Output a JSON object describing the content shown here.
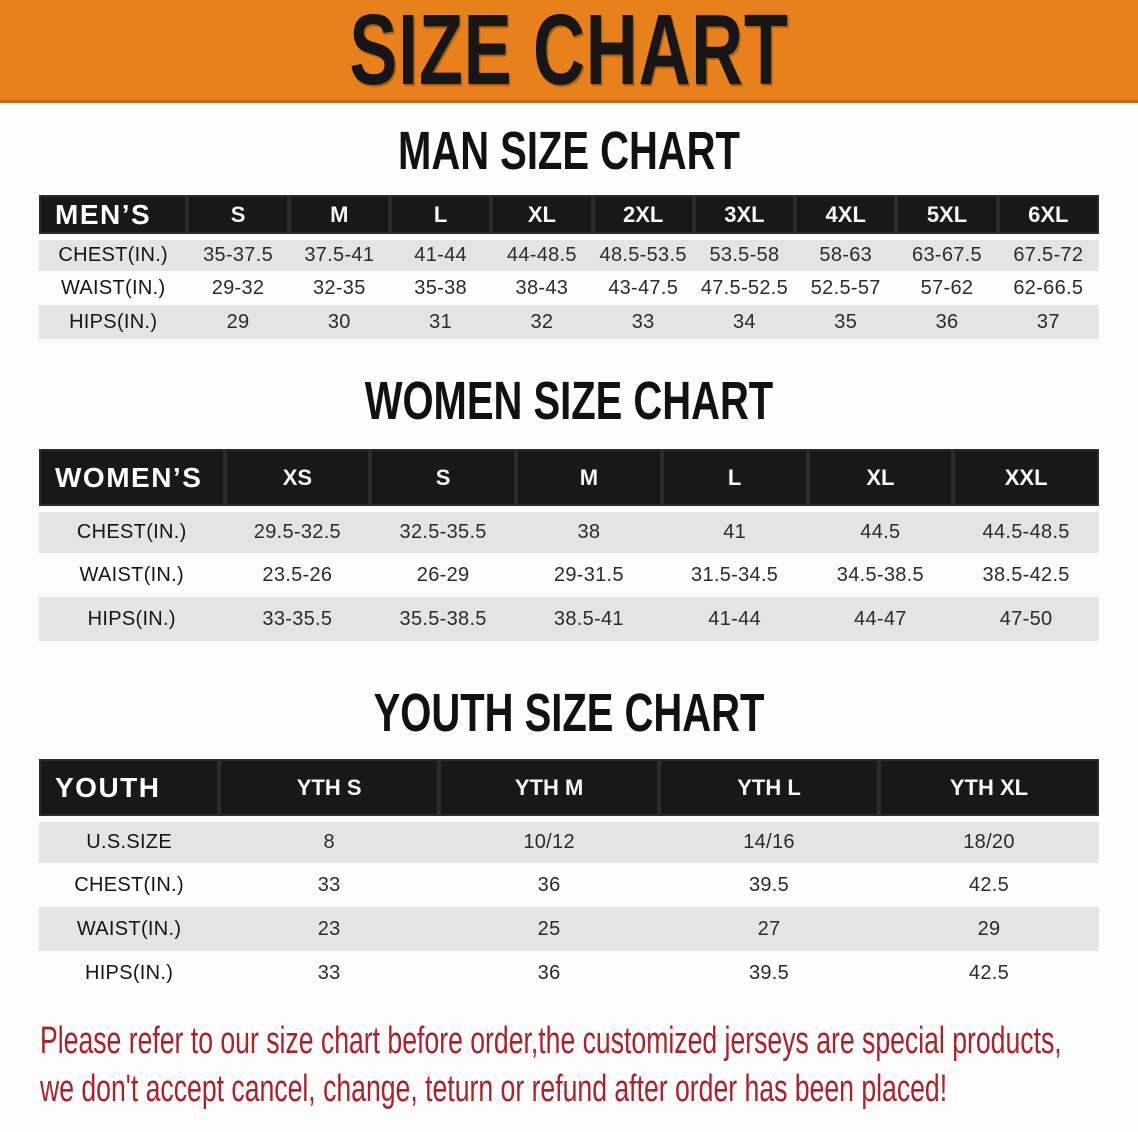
{
  "banner": {
    "title": "SIZE CHART"
  },
  "colors": {
    "banner_bg": "#E8801B",
    "banner_border": "#C86A12",
    "header_bar": "#181818",
    "row_stripe": "#E4E4E4",
    "note_text": "#AB2328"
  },
  "sections": [
    {
      "id": "men",
      "title": "MAN SIZE CHART",
      "table": {
        "group_label": "MEN’S",
        "columns": [
          "S",
          "M",
          "L",
          "XL",
          "2XL",
          "3XL",
          "4XL",
          "5XL",
          "6XL"
        ],
        "rows": [
          {
            "label": "CHEST(IN.)",
            "values": [
              "35-37.5",
              "37.5-41",
              "41-44",
              "44-48.5",
              "48.5-53.5",
              "53.5-58",
              "58-63",
              "63-67.5",
              "67.5-72"
            ]
          },
          {
            "label": "WAIST(IN.)",
            "values": [
              "29-32",
              "32-35",
              "35-38",
              "38-43",
              "43-47.5",
              "47.5-52.5",
              "52.5-57",
              "57-62",
              "62-66.5"
            ]
          },
          {
            "label": "HIPS(IN.)",
            "values": [
              "29",
              "30",
              "31",
              "32",
              "33",
              "34",
              "35",
              "36",
              "37"
            ]
          }
        ]
      }
    },
    {
      "id": "women",
      "title": "WOMEN SIZE CHART",
      "table": {
        "group_label": "WOMEN’S",
        "columns": [
          "XS",
          "S",
          "M",
          "L",
          "XL",
          "XXL"
        ],
        "rows": [
          {
            "label": "CHEST(IN.)",
            "values": [
              "29.5-32.5",
              "32.5-35.5",
              "38",
              "41",
              "44.5",
              "44.5-48.5"
            ]
          },
          {
            "label": "WAIST(IN.)",
            "values": [
              "23.5-26",
              "26-29",
              "29-31.5",
              "31.5-34.5",
              "34.5-38.5",
              "38.5-42.5"
            ]
          },
          {
            "label": "HIPS(IN.)",
            "values": [
              "33-35.5",
              "35.5-38.5",
              "38.5-41",
              "41-44",
              "44-47",
              "47-50"
            ]
          }
        ]
      }
    },
    {
      "id": "youth",
      "title": "YOUTH SIZE CHART",
      "table": {
        "group_label": "YOUTH",
        "columns": [
          "YTH S",
          "YTH M",
          "YTH L",
          "YTH XL"
        ],
        "rows": [
          {
            "label": "U.S.SIZE",
            "values": [
              "8",
              "10/12",
              "14/16",
              "18/20"
            ]
          },
          {
            "label": "CHEST(IN.)",
            "values": [
              "33",
              "36",
              "39.5",
              "42.5"
            ]
          },
          {
            "label": "WAIST(IN.)",
            "values": [
              "23",
              "25",
              "27",
              "29"
            ]
          },
          {
            "label": "HIPS(IN.)",
            "values": [
              "33",
              "36",
              "39.5",
              "42.5"
            ]
          }
        ]
      }
    }
  ],
  "note": {
    "line1": "Please refer to our size chart before order,the customized jerseys are special products,",
    "line2": "we don't accept cancel, change, teturn or refund after order has been placed!"
  }
}
